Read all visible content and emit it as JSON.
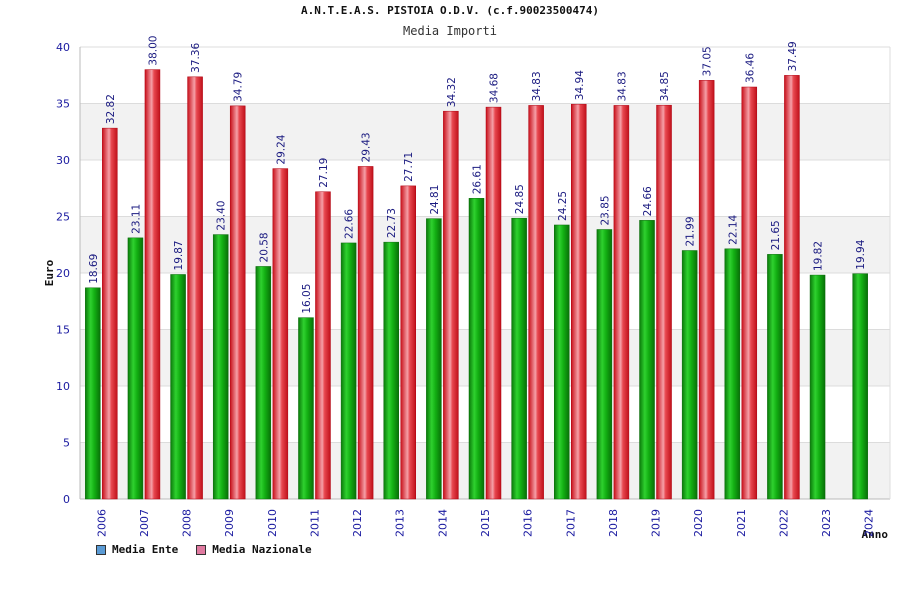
{
  "chart_data": {
    "type": "bar",
    "title": "A.N.T.E.A.S. PISTOIA O.D.V. (c.f.90023500474)",
    "subtitle": "Media Importi",
    "xlabel": "Anno",
    "ylabel": "Euro",
    "ylim": [
      0,
      40
    ],
    "yticks": [
      0,
      5,
      10,
      15,
      20,
      25,
      30,
      35,
      40
    ],
    "categories": [
      "2006",
      "2007",
      "2008",
      "2009",
      "2010",
      "2011",
      "2012",
      "2013",
      "2014",
      "2015",
      "2016",
      "2017",
      "2018",
      "2019",
      "2020",
      "2021",
      "2022",
      "2023",
      "2024"
    ],
    "series": [
      {
        "name": "Media Ente",
        "color": "#11b311",
        "legend_color": "#5b9bd5",
        "values": [
          18.69,
          23.11,
          19.87,
          23.4,
          20.58,
          16.05,
          22.66,
          22.73,
          24.81,
          26.61,
          24.85,
          24.25,
          23.85,
          24.66,
          21.99,
          22.14,
          21.65,
          19.82,
          19.94
        ],
        "labels": [
          "18.69",
          "23.11",
          "19.87",
          "23.40",
          "20.58",
          "16.05",
          "22.66",
          "22.73",
          "24.81",
          "26.61",
          "24.85",
          "24.25",
          "23.85",
          "24.66",
          "21.99",
          "22.14",
          "21.65",
          "19.82",
          "19.94"
        ]
      },
      {
        "name": "Media Nazionale",
        "color": "#e8202a",
        "legend_color": "#e07aa0",
        "values": [
          32.82,
          38.0,
          37.36,
          34.79,
          29.24,
          27.19,
          29.43,
          27.71,
          34.32,
          34.68,
          34.83,
          34.94,
          34.83,
          34.85,
          37.05,
          36.46,
          37.49,
          null,
          null
        ],
        "labels": [
          "32.82",
          "38.00",
          "37.36",
          "34.79",
          "29.24",
          "27.19",
          "29.43",
          "27.71",
          "34.32",
          "34.68",
          "34.83",
          "34.94",
          "34.83",
          "34.85",
          "37.05",
          "36.46",
          "37.49",
          null,
          null
        ]
      }
    ],
    "grid": true,
    "legend_position": "bottom-left"
  }
}
